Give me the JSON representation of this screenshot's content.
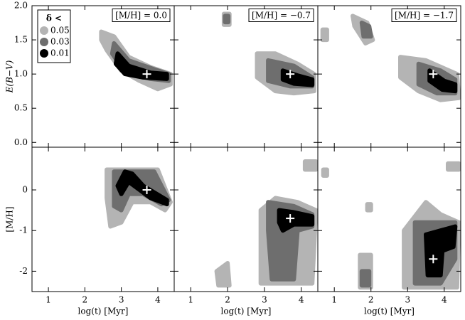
{
  "chart_data": [
    {
      "type": "region",
      "title": "[M/H] = 0.0",
      "ylabel": "E(B−V)",
      "xlim": [
        0.55,
        4.45
      ],
      "ylim": [
        -0.07,
        2.0
      ],
      "xticks": [
        1,
        2,
        3,
        4
      ],
      "yticks": [
        {
          "value": 0,
          "label": "0.0"
        },
        0.5,
        {
          "value": 1,
          "label": "1.0"
        },
        1.5,
        {
          "value": 2,
          "label": "2.0"
        }
      ],
      "show_xticklabels": false,
      "show_yticklabels": true,
      "legend": "upper left",
      "legend_title": "δ <",
      "series": [
        {
          "name": "0.05",
          "color": "#b4b4b4",
          "x": [
            2.45,
            2.8,
            3.2,
            3.8,
            4.35,
            4.35,
            4.0,
            3.5,
            3.0,
            2.6,
            2.45
          ],
          "values": [
            1.62,
            1.55,
            1.25,
            1.1,
            1.0,
            0.85,
            0.78,
            0.9,
            1.05,
            1.35,
            1.5
          ]
        },
        {
          "name": "0.03",
          "color": "#6e6e6e",
          "x": [
            2.8,
            3.2,
            3.9,
            4.3,
            4.3,
            3.8,
            3.1,
            2.75
          ],
          "values": [
            1.45,
            1.2,
            1.07,
            1.0,
            0.9,
            0.93,
            1.02,
            1.3
          ]
        },
        {
          "name": "0.01",
          "color": "#000000",
          "x": [
            2.9,
            3.2,
            3.8,
            4.25,
            4.25,
            3.6,
            3.1,
            2.85
          ],
          "values": [
            1.3,
            1.12,
            1.02,
            1.0,
            0.93,
            0.95,
            1.0,
            1.15
          ]
        }
      ],
      "best_fit": {
        "x": 3.7,
        "y": 1.0
      }
    },
    {
      "type": "region",
      "title": "[M/H] = −0.7",
      "xlim": [
        0.55,
        4.45
      ],
      "ylim": [
        -0.07,
        2.0
      ],
      "xticks": [
        1,
        2,
        3,
        4
      ],
      "yticks": [
        0,
        0.5,
        1,
        1.5,
        2
      ],
      "show_xticklabels": false,
      "show_yticklabels": false,
      "series": [
        {
          "name": "0.05",
          "color": "#b4b4b4",
          "x": [
            2.8,
            3.3,
            3.9,
            4.35,
            4.35,
            3.8,
            3.3,
            2.8,
            null,
            1.9,
            2.05,
            2.05,
            1.9
          ],
          "values": [
            1.3,
            1.3,
            1.15,
            1.0,
            0.75,
            0.72,
            0.75,
            0.95,
            null,
            1.88,
            1.88,
            1.72,
            1.72
          ]
        },
        {
          "name": "0.03",
          "color": "#6e6e6e",
          "x": [
            3.1,
            3.8,
            4.3,
            4.3,
            3.7,
            3.1,
            null,
            1.93,
            2.02,
            2.02,
            1.93
          ],
          "values": [
            1.2,
            1.12,
            0.95,
            0.82,
            0.82,
            0.9,
            null,
            1.85,
            1.85,
            1.76,
            1.76
          ]
        },
        {
          "name": "0.01",
          "color": "#000000",
          "x": [
            3.5,
            3.9,
            4.3,
            4.3,
            3.8,
            3.5
          ],
          "values": [
            1.05,
            0.98,
            0.92,
            0.84,
            0.86,
            0.92
          ]
        }
      ],
      "best_fit": {
        "x": 3.7,
        "y": 1.0
      }
    },
    {
      "type": "region",
      "title": "[M/H] = −1.7",
      "xlim": [
        0.55,
        4.45
      ],
      "ylim": [
        -0.07,
        2.0
      ],
      "xticks": [
        1,
        2,
        3,
        4
      ],
      "yticks": [
        0,
        0.5,
        1,
        1.5,
        2
      ],
      "show_xticklabels": false,
      "show_yticklabels": false,
      "series": [
        {
          "name": "0.05",
          "color": "#b4b4b4",
          "x": [
            2.8,
            3.5,
            4.35,
            4.4,
            3.9,
            3.3,
            2.8,
            null,
            1.5,
            1.9,
            2.05,
            1.85,
            1.55,
            null,
            0.68,
            0.8,
            0.8,
            0.68
          ],
          "values": [
            1.25,
            1.2,
            1.0,
            0.65,
            0.62,
            0.75,
            0.95,
            null,
            1.85,
            1.75,
            1.5,
            1.45,
            1.7,
            null,
            1.65,
            1.65,
            1.5,
            1.5
          ]
        },
        {
          "name": "0.03",
          "color": "#6e6e6e",
          "x": [
            3.3,
            3.9,
            4.3,
            4.3,
            3.8,
            3.3,
            null,
            1.75,
            1.95,
            2.0,
            1.8
          ],
          "values": [
            1.15,
            1.05,
            0.92,
            0.72,
            0.72,
            0.85,
            null,
            1.75,
            1.7,
            1.55,
            1.55
          ]
        },
        {
          "name": "0.01",
          "color": "#000000",
          "x": [
            3.6,
            4.0,
            4.3,
            4.3,
            3.95,
            3.6
          ],
          "values": [
            1.05,
            0.9,
            0.85,
            0.75,
            0.77,
            0.9
          ]
        }
      ],
      "best_fit": {
        "x": 3.7,
        "y": 1.0
      }
    },
    {
      "type": "region",
      "xlabel": "log(t) [Myr]",
      "ylabel": "[M/H]",
      "xlim": [
        0.55,
        4.45
      ],
      "ylim": [
        -2.5,
        1.05
      ],
      "xticks": [
        1,
        2,
        3,
        4
      ],
      "yticks": [
        -2,
        -1,
        0
      ],
      "show_xticklabels": true,
      "show_yticklabels": true,
      "series": [
        {
          "name": "0.05",
          "color": "#b4b4b4",
          "x": [
            2.6,
            4.0,
            4.35,
            4.2,
            3.8,
            3.3,
            3.0,
            2.7,
            2.6
          ],
          "values": [
            0.5,
            0.5,
            -0.3,
            -0.5,
            -0.3,
            -0.3,
            -0.8,
            -0.9,
            -0.2
          ]
        },
        {
          "name": "0.03",
          "color": "#6e6e6e",
          "x": [
            2.8,
            3.9,
            4.3,
            4.1,
            3.6,
            3.2,
            3.0,
            2.8
          ],
          "values": [
            0.45,
            0.45,
            -0.25,
            -0.35,
            -0.1,
            -0.1,
            -0.5,
            -0.4
          ]
        },
        {
          "name": "0.01",
          "color": "#000000",
          "x": [
            2.9,
            3.1,
            3.3,
            3.6,
            4.25,
            4.25,
            3.8,
            3.5,
            3.2,
            3.0
          ],
          "values": [
            0.1,
            0.45,
            0.4,
            0.1,
            -0.25,
            -0.35,
            -0.2,
            0.0,
            0.2,
            -0.1
          ]
        }
      ],
      "best_fit": {
        "x": 3.7,
        "y": 0.0
      }
    },
    {
      "type": "region",
      "xlabel": "log(t) [Myr]",
      "xlim": [
        0.55,
        4.45
      ],
      "ylim": [
        -2.5,
        1.05
      ],
      "xticks": [
        1,
        2,
        3,
        4
      ],
      "yticks": [
        -2,
        -1,
        0
      ],
      "show_xticklabels": true,
      "show_yticklabels": false,
      "series": [
        {
          "name": "0.05",
          "color": "#b4b4b4",
          "x": [
            2.9,
            3.3,
            3.9,
            4.4,
            4.3,
            2.9,
            null,
            1.7,
            2.0,
            2.05,
            1.75,
            null,
            4.1,
            4.4,
            4.4,
            4.1
          ],
          "values": [
            -0.5,
            -0.2,
            -0.3,
            -0.5,
            -2.3,
            -2.3,
            null,
            -2.0,
            -1.8,
            -2.35,
            -2.35,
            null,
            0.7,
            0.7,
            0.5,
            0.5
          ]
        },
        {
          "name": "0.03",
          "color": "#6e6e6e",
          "x": [
            3.1,
            3.8,
            4.3,
            4.3,
            3.9,
            3.8,
            3.2,
            3.1
          ],
          "values": [
            -0.3,
            -0.4,
            -0.6,
            -0.9,
            -1.0,
            -2.2,
            -2.2,
            -1.0
          ]
        },
        {
          "name": "0.01",
          "color": "#000000",
          "x": [
            3.4,
            3.8,
            4.3,
            4.3,
            3.8,
            3.5,
            3.4
          ],
          "values": [
            -0.5,
            -0.55,
            -0.65,
            -0.85,
            -0.85,
            -1.0,
            -0.8
          ]
        }
      ],
      "best_fit": {
        "x": 3.7,
        "y": -0.7
      }
    },
    {
      "type": "region",
      "xlabel": "log(t) [Myr]",
      "xlim": [
        0.55,
        4.45
      ],
      "ylim": [
        -2.5,
        1.05
      ],
      "xticks": [
        1,
        2,
        3,
        4
      ],
      "yticks": [
        -2,
        -1,
        0
      ],
      "show_xticklabels": true,
      "show_yticklabels": false,
      "series": [
        {
          "name": "0.05",
          "color": "#b4b4b4",
          "x": [
            2.9,
            3.5,
            3.9,
            4.4,
            4.35,
            2.9,
            null,
            0.7,
            0.8,
            0.8,
            0.7,
            null,
            1.9,
            2.0,
            2.0,
            1.9,
            null,
            1.7,
            2.0,
            2.0,
            1.7,
            null,
            4.1,
            4.4,
            4.4,
            4.1
          ],
          "values": [
            -1.0,
            -0.3,
            -0.6,
            -0.8,
            -2.4,
            -2.4,
            null,
            0.5,
            0.5,
            0.35,
            0.35,
            null,
            -0.35,
            -0.35,
            -0.5,
            -0.5,
            null,
            -1.6,
            -1.6,
            -2.4,
            -2.4,
            null,
            0.65,
            0.65,
            0.5,
            0.5
          ]
        },
        {
          "name": "0.03",
          "color": "#6e6e6e",
          "x": [
            3.2,
            3.8,
            4.3,
            4.3,
            3.9,
            3.2,
            null,
            1.75,
            1.95,
            1.95,
            1.75
          ],
          "values": [
            -0.8,
            -0.8,
            -0.8,
            -1.7,
            -2.3,
            -2.3,
            null,
            -2.0,
            -2.0,
            -2.35,
            -2.35
          ]
        },
        {
          "name": "0.01",
          "color": "#000000",
          "x": [
            3.5,
            3.9,
            4.3,
            4.25,
            3.95,
            3.9,
            3.55
          ],
          "values": [
            -1.1,
            -1.0,
            -0.9,
            -1.4,
            -1.5,
            -2.1,
            -2.1
          ]
        }
      ],
      "best_fit": {
        "x": 3.7,
        "y": -1.7
      }
    }
  ]
}
